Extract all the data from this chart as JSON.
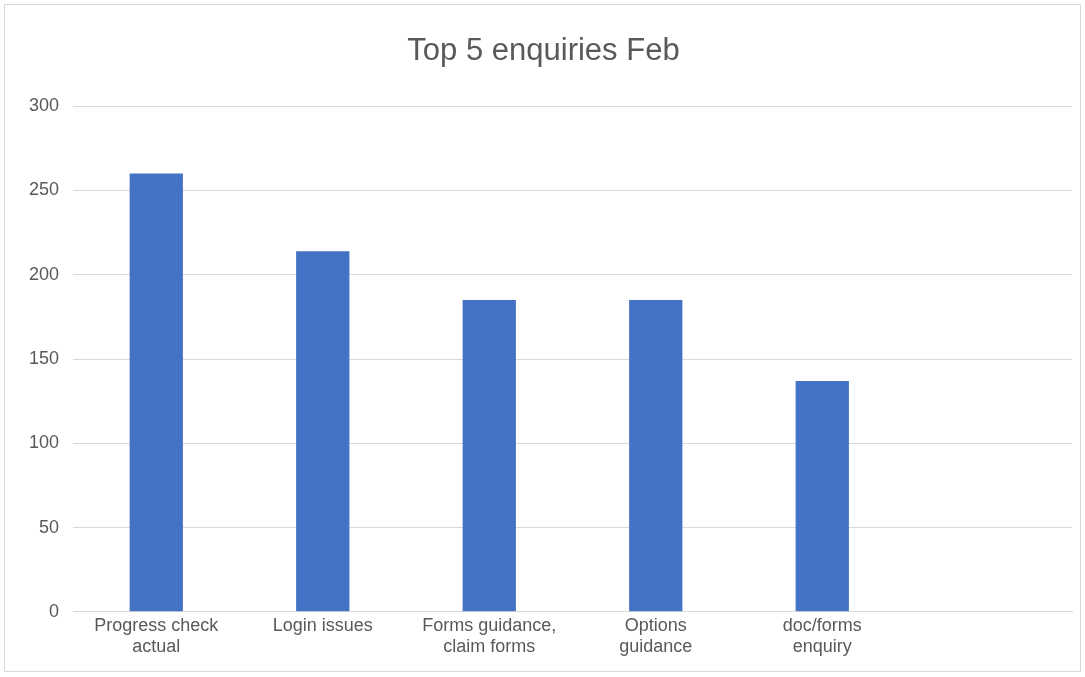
{
  "chart_data": {
    "type": "bar",
    "title": "Top 5 enquiries Feb",
    "categories": [
      "Progress check actual",
      "Login issues",
      "Forms guidance, claim forms",
      "Options guidance",
      "doc/forms enquiry",
      null
    ],
    "values": [
      260,
      214,
      185,
      185,
      137,
      null
    ],
    "color": "#4472c4",
    "ylim": [
      0,
      300
    ],
    "yticks": [
      0,
      50,
      100,
      150,
      200,
      250,
      300
    ],
    "grid": "y",
    "legend": false
  }
}
